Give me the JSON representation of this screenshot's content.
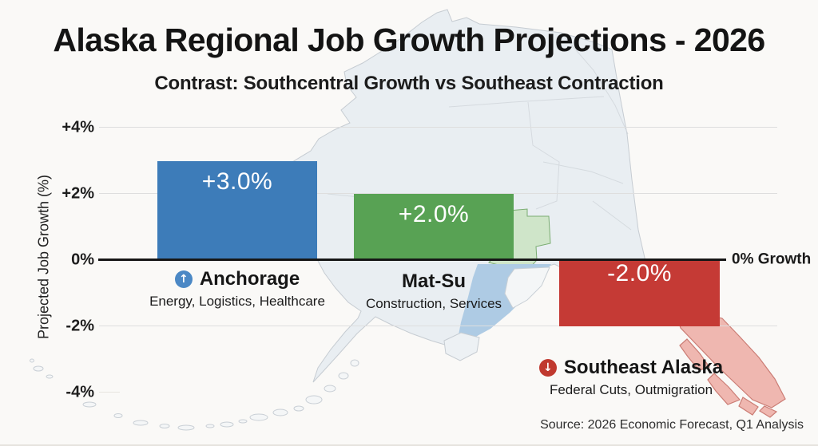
{
  "header": {
    "title": "Alaska Regional Job Growth Projections - 2026",
    "subtitle": "Contrast: Southcentral Growth vs Southeast Contraction"
  },
  "chart_data": {
    "type": "bar",
    "title": "Alaska Regional Job Growth Projections - 2026",
    "subtitle": "Contrast: Southcentral Growth vs Southeast Contraction",
    "ylabel": "Projected Job Growth (%)",
    "xlabel": "",
    "ylim": [
      -5,
      5
    ],
    "ytick_labels": [
      "+4%",
      "+2%",
      "0%",
      "-2%",
      "-4%"
    ],
    "ytick_values": [
      4,
      2,
      0,
      -2,
      -4
    ],
    "grid": "horizontal gridlines at +4%, +2%, -2%, -4%; bold black baseline at 0%",
    "legend": "none",
    "zero_baseline_label": "0% Growth",
    "categories": [
      "Anchorage",
      "Mat-Su",
      "Southeast Alaska"
    ],
    "values": [
      3.0,
      2.0,
      -2.0
    ],
    "bar_value_labels": [
      "+3.0%",
      "+2.0%",
      "-2.0%"
    ],
    "bar_colors": [
      "#3d7cb9",
      "#58a254",
      "#c53a35"
    ],
    "category_notes": [
      "Energy, Logistics, Healthcare",
      "Construction, Services",
      "Federal Cuts, Outmigration"
    ],
    "category_trend_icons": [
      "up-arrow-circle",
      "none",
      "down-arrow-circle"
    ],
    "background_art": "faint Alaska state map; Mat-Su borough tinted light green, Southeast panhandle tinted light red, Cook Inlet water light blue, Aleutian island chain lower left",
    "source": "Source: 2026 Economic Forecast, Q1 Analysis"
  },
  "icons": {
    "up_arrow": "↑",
    "down_arrow": "↓"
  },
  "colors": {
    "background": "#faf9f7",
    "anchorage_bar": "#3d7cb9",
    "matsu_bar": "#58a254",
    "southeast_bar": "#c53a35",
    "up_icon_circle": "#4b88c5",
    "down_icon_circle": "#c0392f",
    "map_land": "#e9eef2",
    "map_matsu_highlight": "#cfe5c9",
    "map_southeast_highlight": "#efb7b0",
    "map_water": "#aecbe4"
  }
}
